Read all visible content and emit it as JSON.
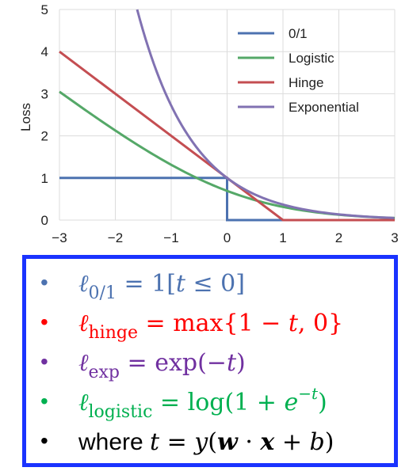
{
  "chart_data": {
    "type": "line",
    "xlabel": "",
    "ylabel": "Loss",
    "xlim": [
      -3,
      3
    ],
    "ylim": [
      0,
      5
    ],
    "xticks": [
      "−3",
      "−2",
      "−1",
      "0",
      "1",
      "2",
      "3"
    ],
    "yticks": [
      "0",
      "1",
      "2",
      "3",
      "4",
      "5"
    ],
    "grid": true,
    "legend_position": "top-right",
    "series": [
      {
        "name": "0/1",
        "color": "#4c72b0",
        "x": [
          -3,
          0,
          0,
          3
        ],
        "y": [
          1,
          1,
          0,
          0
        ]
      },
      {
        "name": "Logistic",
        "color": "#55a868",
        "x": [
          -3,
          -2,
          -1,
          0,
          1,
          2,
          3
        ],
        "y": [
          3.05,
          2.13,
          1.31,
          0.69,
          0.31,
          0.13,
          0.05
        ]
      },
      {
        "name": "Hinge",
        "color": "#c44e52",
        "x": [
          -3,
          1,
          3
        ],
        "y": [
          4,
          0,
          0
        ]
      },
      {
        "name": "Exponential",
        "color": "#8172b2",
        "x": [
          -1.61,
          -1,
          0,
          1,
          2,
          3
        ],
        "y": [
          5,
          2.72,
          1,
          0.37,
          0.14,
          0.05
        ]
      }
    ]
  },
  "formulas": {
    "zero_one": {
      "bullet": "•",
      "lhs": "ℓ",
      "sub": "0/1",
      "rhs": " = 1[𝑡 ≤ 0]",
      "color": "#4c72b0"
    },
    "hinge": {
      "bullet": "•",
      "lhs": "ℓ",
      "sub": "hinge",
      "rhs": " = max{1 − 𝑡, 0}",
      "color": "#ff0000"
    },
    "exp": {
      "bullet": "•",
      "lhs": "ℓ",
      "sub": "exp",
      "rhs": " = exp(−𝑡)",
      "color": "#7030a0"
    },
    "logistic": {
      "bullet": "•",
      "lhs": "ℓ",
      "sub": "logistic",
      "rhs_a": " = log(1 + 𝑒",
      "sup": "−𝑡",
      "rhs_b": ")",
      "color": "#00b050"
    },
    "where": {
      "bullet": "•",
      "word": "where ",
      "rhs_a": "𝑡 = 𝑦(",
      "w": "𝒘",
      "dot": " · ",
      "x": "𝒙",
      "rhs_b": " + 𝑏)",
      "color": "#000000"
    }
  }
}
